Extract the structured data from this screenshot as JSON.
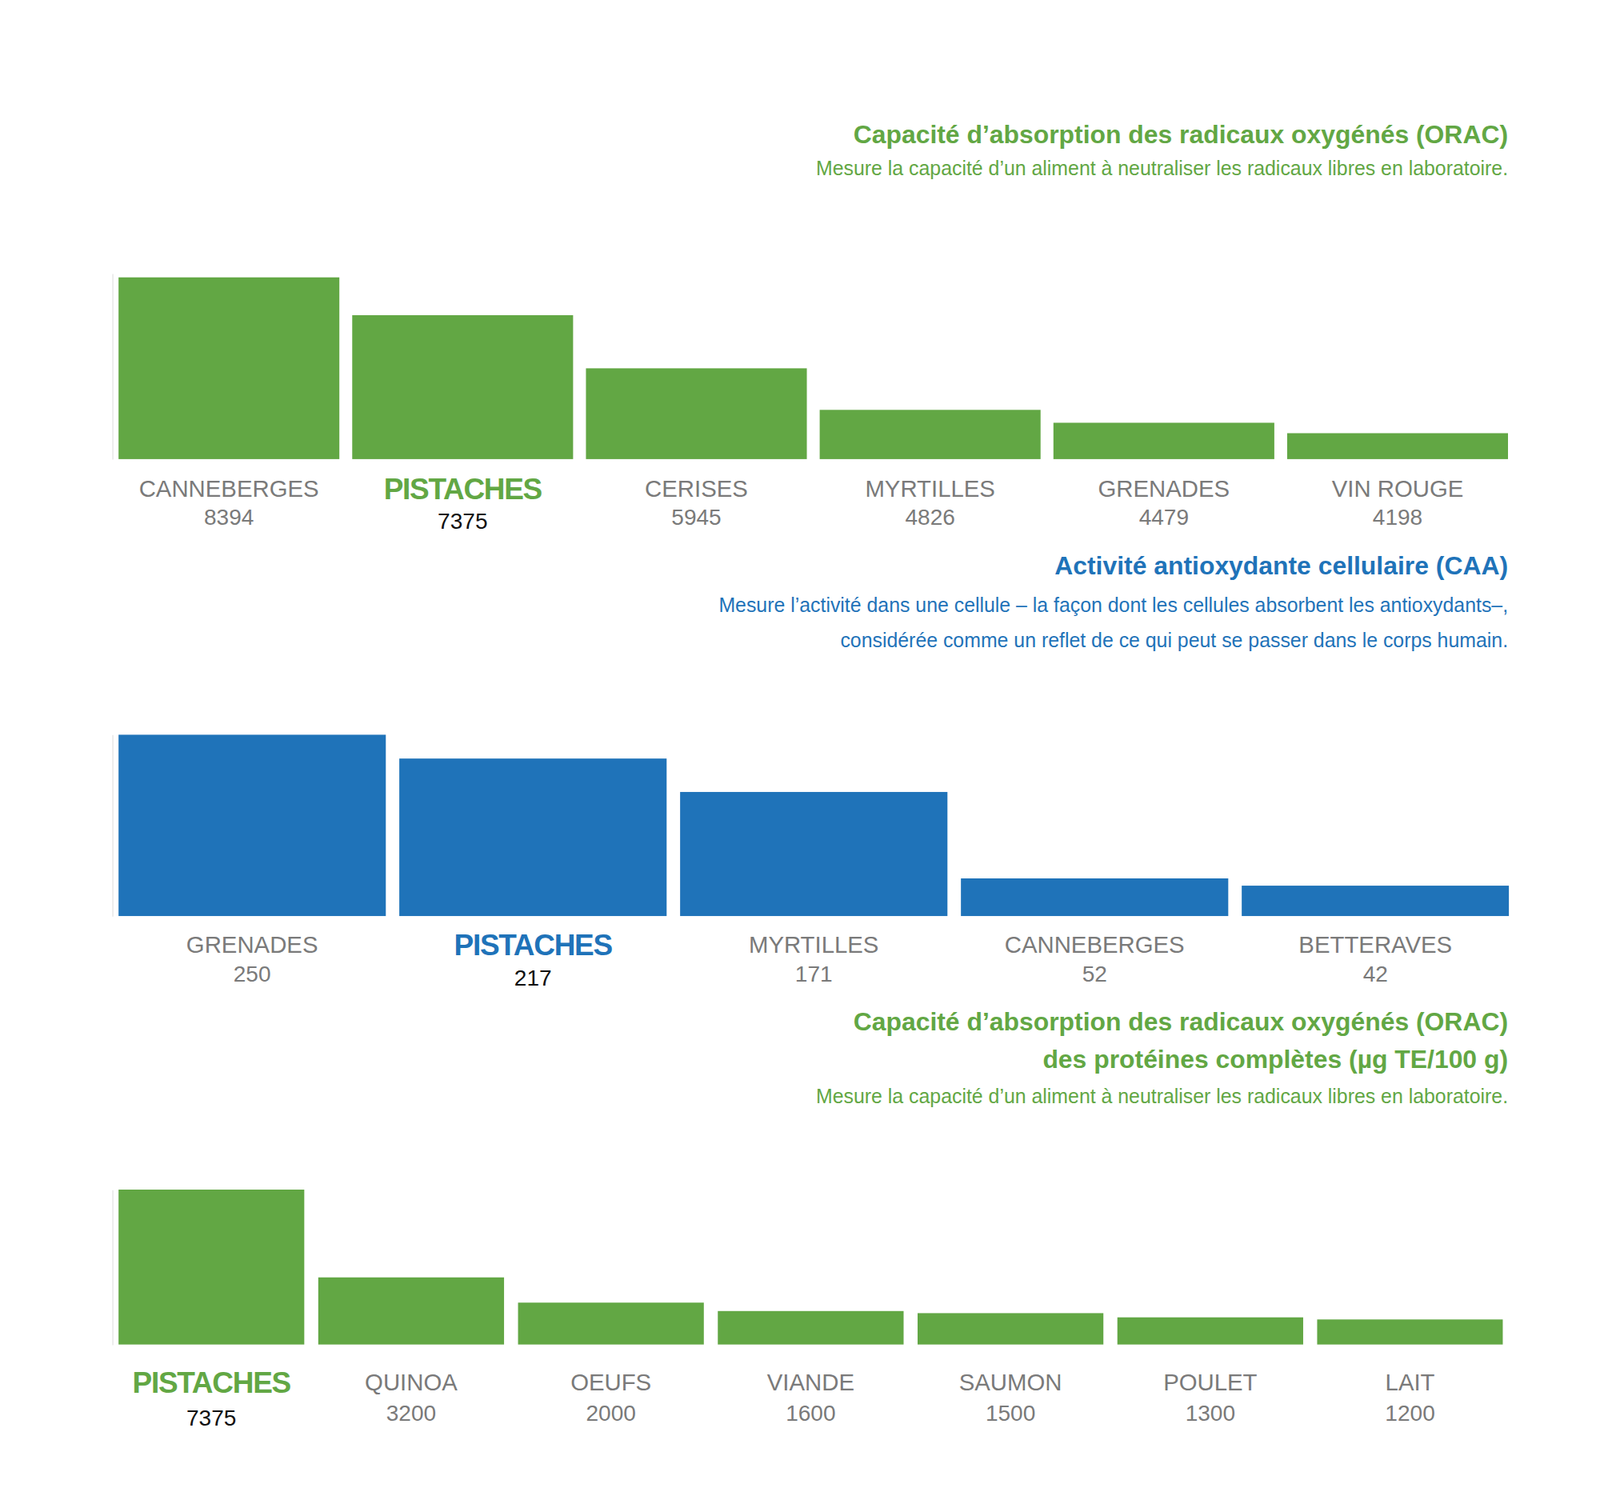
{
  "chart_data": [
    {
      "type": "bar",
      "title": [
        "Capacité d’absorption des radicaux oxygénés (ORAC)"
      ],
      "subtitle": [
        "Mesure la capacité d’un aliment à neutraliser les radicaux libres en laboratoire."
      ],
      "categories": [
        "CANNEBERGES",
        "PISTACHES",
        "CERISES",
        "MYRTILLES",
        "GRENADES",
        "VIN ROUGE"
      ],
      "values": [
        8394,
        7375,
        5945,
        4826,
        4479,
        4198
      ],
      "color": "#62a744",
      "ylim": [
        3500,
        8500
      ],
      "data_labels": true,
      "tick_labels": "x"
    },
    {
      "type": "bar",
      "title": [
        "Activité antioxydante cellulaire (CAA)"
      ],
      "subtitle": [
        "Mesure l’activité dans une cellule – la façon dont les cellules absorbent les antioxydants–,",
        "considérée comme un reflet de ce qui peut se passer dans le corps humain."
      ],
      "categories": [
        "GRENADES",
        "PISTACHES",
        "MYRTILLES",
        "CANNEBERGES",
        "BETTERAVES"
      ],
      "values": [
        250,
        217,
        171,
        52,
        42
      ],
      "color": "#1f73b9",
      "ylim": [
        0,
        250
      ],
      "data_labels": true,
      "tick_labels": "x"
    },
    {
      "type": "bar",
      "title": [
        "Capacité d’absorption des radicaux oxygénés (ORAC)",
        "des protéines complètes (µg TE/100 g)"
      ],
      "subtitle": [
        "Mesure la capacité d’un aliment à neutraliser les radicaux libres en laboratoire."
      ],
      "categories": [
        "PISTACHES",
        "QUINOA",
        "OEUFS",
        "VIANDE",
        "SAUMON",
        "POULET",
        "LAIT"
      ],
      "values": [
        7375,
        3200,
        2000,
        1600,
        1500,
        1300,
        1200
      ],
      "color": "#62a744",
      "ylim": [
        0,
        7375
      ],
      "data_labels": true,
      "tick_labels": "x"
    }
  ]
}
